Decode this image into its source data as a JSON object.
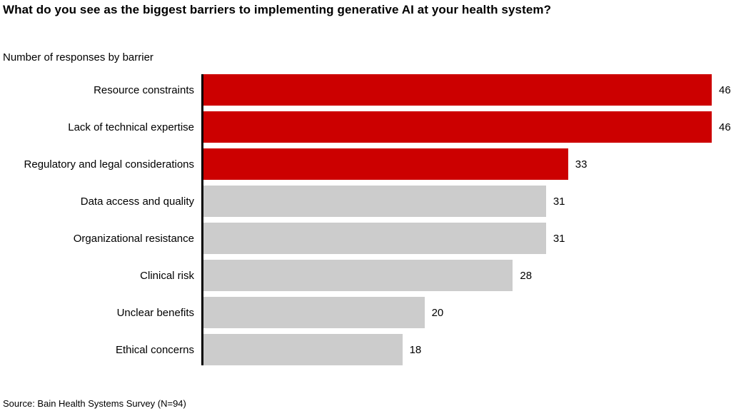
{
  "title": "What do you see as the biggest barriers to implementing generative AI at your health system?",
  "subtitle": "Number of responses by barrier",
  "source": "Source: Bain Health Systems Survey (N=94)",
  "colors": {
    "highlight_bar": "#cc0000",
    "default_bar": "#cccccc",
    "axis": "#000000",
    "text": "#000000"
  },
  "chart_data": {
    "type": "bar",
    "orientation": "horizontal",
    "title": "What do you see as the biggest barriers to implementing generative AI at your health system?",
    "subtitle": "Number of responses by barrier",
    "xlabel": "",
    "ylabel": "",
    "categories": [
      "Resource constraints",
      "Lack of technical expertise",
      "Regulatory and legal considerations",
      "Data access and quality",
      "Organizational resistance",
      "Clinical risk",
      "Unclear benefits",
      "Ethical concerns"
    ],
    "values": [
      46,
      46,
      33,
      31,
      31,
      28,
      20,
      18
    ],
    "highlighted": [
      true,
      true,
      true,
      false,
      false,
      false,
      false,
      false
    ],
    "data_labels_shown": true,
    "xlim": [
      0,
      46
    ],
    "grid": false,
    "legend": "none",
    "source_note": "Source: Bain Health Systems Survey (N=94)"
  }
}
